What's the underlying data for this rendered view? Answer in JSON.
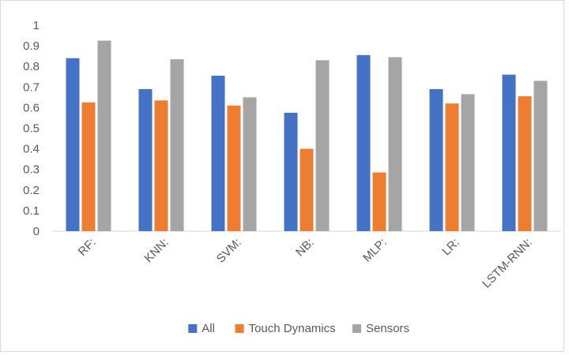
{
  "chart_data": {
    "type": "bar",
    "categories": [
      "RF:",
      "KNN:",
      "SVM:",
      "NB:",
      "MLP:",
      "LR:",
      "LSTM-RNN:"
    ],
    "series": [
      {
        "name": "All",
        "color": "#4472C4",
        "values": [
          0.84,
          0.69,
          0.755,
          0.575,
          0.855,
          0.69,
          0.76
        ]
      },
      {
        "name": "Touch Dynamics",
        "color": "#ED7D31",
        "values": [
          0.625,
          0.635,
          0.61,
          0.4,
          0.285,
          0.62,
          0.655
        ]
      },
      {
        "name": "Sensors",
        "color": "#A5A5A5",
        "values": [
          0.925,
          0.835,
          0.65,
          0.83,
          0.845,
          0.665,
          0.73
        ]
      }
    ],
    "y_ticks": [
      "0",
      "0.1",
      "0.2",
      "0.3",
      "0.4",
      "0.5",
      "0.6",
      "0.7",
      "0.8",
      "0.9",
      "1"
    ],
    "ylim": [
      0,
      1
    ],
    "grid": false,
    "legend_position": "bottom"
  }
}
